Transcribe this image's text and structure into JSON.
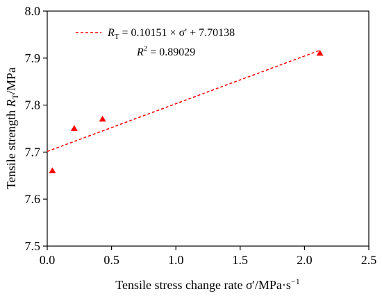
{
  "chart_data": {
    "type": "scatter",
    "xlabel": "Tensile stress change rate σ'/MPa·s",
    "xlabel_superscript": "−1",
    "ylabel_prefix": "Tensile strength ",
    "ylabel_symbol": "R",
    "ylabel_subscript": "T",
    "ylabel_suffix": "/MPa",
    "xlim": [
      0.0,
      2.5
    ],
    "ylim": [
      7.5,
      8.0
    ],
    "x_ticks": [
      0.0,
      0.5,
      1.0,
      1.5,
      2.0,
      2.5
    ],
    "x_tick_labels": [
      "0.0",
      "0.5",
      "1.0",
      "1.5",
      "2.0",
      "2.5"
    ],
    "y_ticks": [
      7.5,
      7.6,
      7.7,
      7.8,
      7.9,
      8.0
    ],
    "y_tick_labels": [
      "7.5",
      "7.6",
      "7.7",
      "7.8",
      "7.9",
      "8.0"
    ],
    "grid": false,
    "series": [
      {
        "kind": "points",
        "marker": "triangle",
        "color": "#ff0000",
        "x": [
          0.04,
          0.21,
          0.43,
          2.12
        ],
        "y": [
          7.66,
          7.75,
          7.77,
          7.91
        ]
      },
      {
        "kind": "fit-line",
        "style": "dashed",
        "color": "#ff0000",
        "slope": 0.10151,
        "intercept": 7.70138,
        "x_range": [
          0.0,
          2.12
        ]
      }
    ],
    "legend": {
      "position": "top-left",
      "equation": {
        "symbol": "R",
        "subscript": "T",
        "rhs": " = 0.10151 ×  σ' + 7.70138"
      },
      "r2": {
        "symbol": "R",
        "superscript": "2",
        "rhs": " = 0.89029"
      }
    }
  }
}
